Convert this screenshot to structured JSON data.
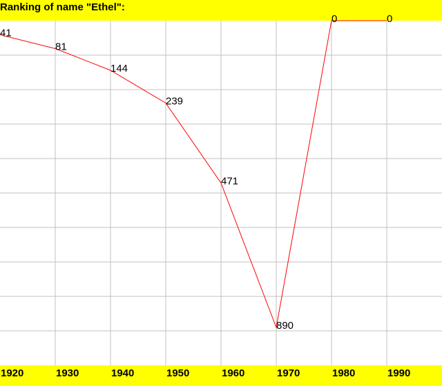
{
  "chart_data": {
    "type": "line",
    "title": "Ranking of name \"Ethel\":",
    "xlabel": "",
    "ylabel": "",
    "x": [
      1920,
      1930,
      1940,
      1950,
      1960,
      1970,
      1980,
      1990
    ],
    "categories": [
      "1920",
      "1930",
      "1940",
      "1950",
      "1960",
      "1970",
      "1980",
      "1990"
    ],
    "series": [
      {
        "values": [
          41,
          81,
          144,
          239,
          471,
          890,
          0,
          0
        ]
      }
    ],
    "data_labels": [
      "41",
      "81",
      "144",
      "239",
      "471",
      "890",
      "0",
      "0"
    ],
    "ylim": [
      1000,
      0
    ],
    "grid": true,
    "line_color": "#ff0000",
    "grid_color": "#c0c0c0",
    "background_bar_color": "#ffff00"
  }
}
